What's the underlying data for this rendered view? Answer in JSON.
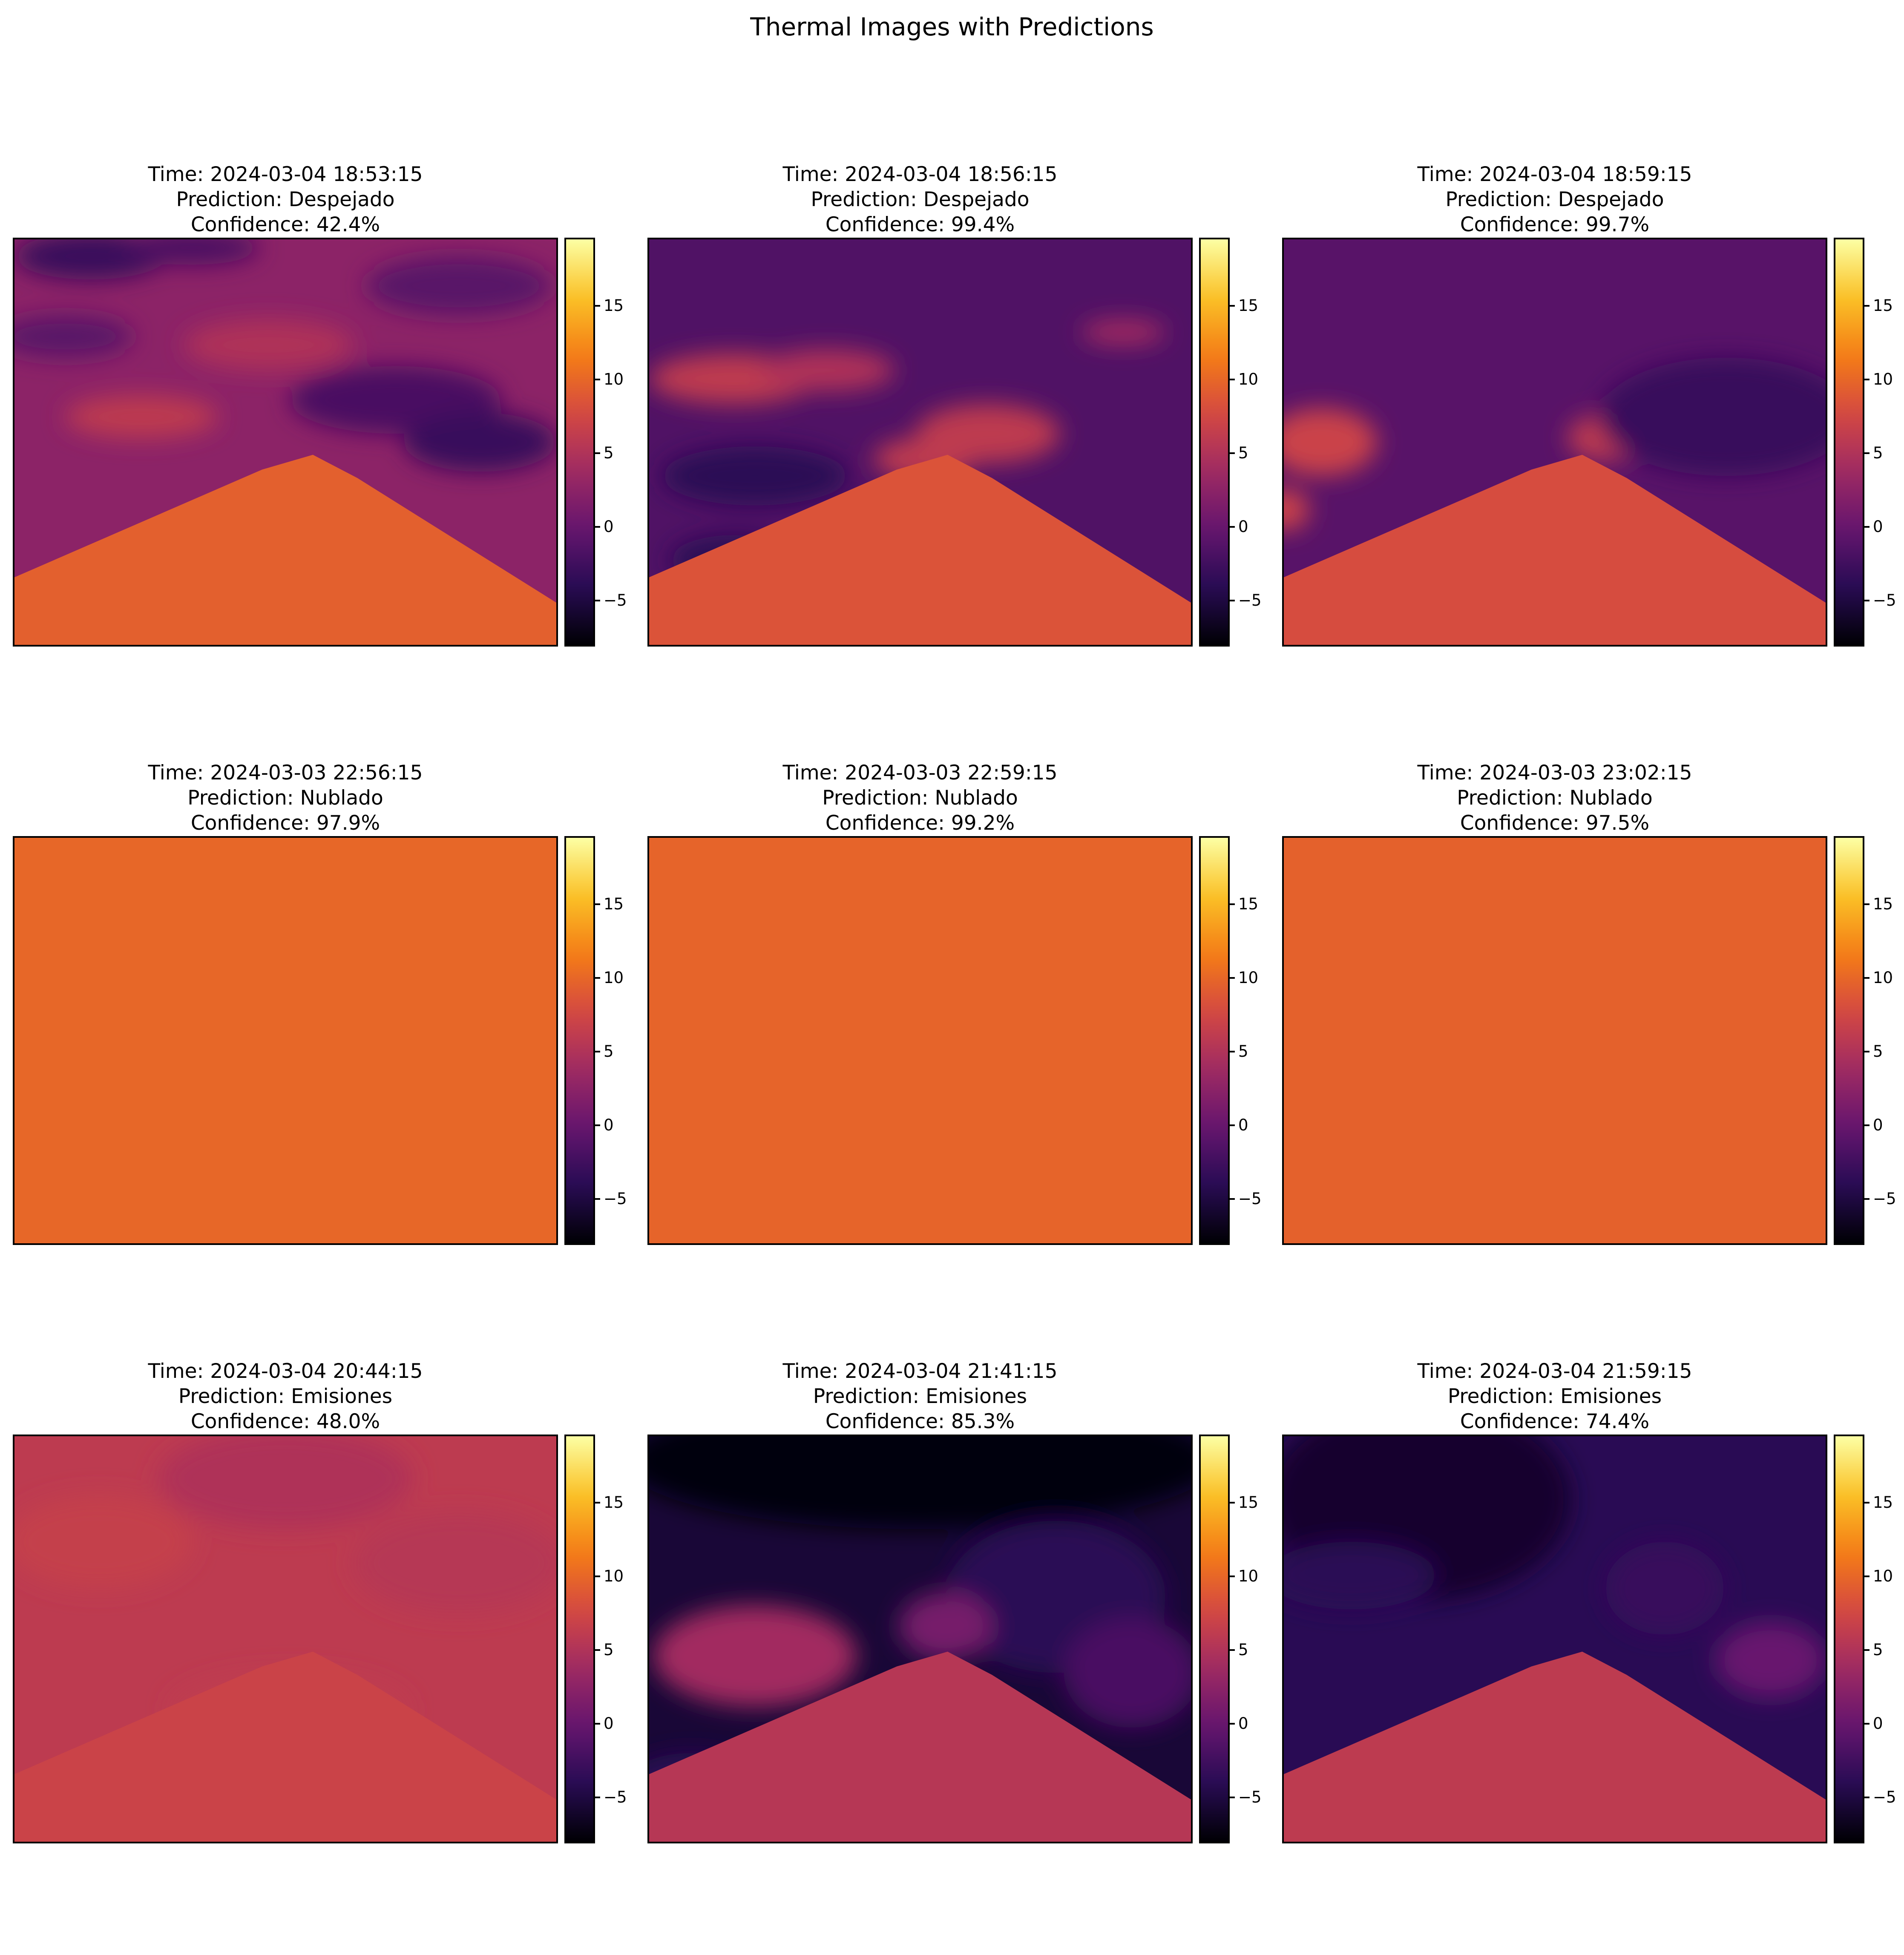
{
  "figure": {
    "title": "Thermal Images with Predictions"
  },
  "colorbar": {
    "colormap": "inferno",
    "vmin": -8,
    "vmax": 19.5,
    "ticks": [
      15,
      10,
      5,
      0,
      -5
    ],
    "tick_labels": [
      "15",
      "10",
      "5",
      "0",
      "−5"
    ]
  },
  "chart_data": [
    {
      "type": "heatmap",
      "time_label": "Time: 2024-03-04 18:53:15",
      "prediction_label": "Prediction: Despejado",
      "confidence_label": "Confidence: 42.4%",
      "scene": "scattered-clouds",
      "sky_value": 2.5,
      "mountain_value": 9.5
    },
    {
      "type": "heatmap",
      "time_label": "Time: 2024-03-04 18:56:15",
      "prediction_label": "Prediction: Despejado",
      "confidence_label": "Confidence: 99.4%",
      "scene": "clear-with-clouds",
      "sky_value": -1.5,
      "mountain_value": 8.5
    },
    {
      "type": "heatmap",
      "time_label": "Time: 2024-03-04 18:59:15",
      "prediction_label": "Prediction: Despejado",
      "confidence_label": "Confidence: 99.7%",
      "scene": "clear-plume",
      "sky_value": -1.0,
      "mountain_value": 8.0
    },
    {
      "type": "heatmap",
      "time_label": "Time: 2024-03-03 22:56:15",
      "prediction_label": "Prediction: Nublado",
      "confidence_label": "Confidence: 97.9%",
      "scene": "uniform",
      "sky_value": 10.0,
      "mountain_value": 10.0
    },
    {
      "type": "heatmap",
      "time_label": "Time: 2024-03-03 22:59:15",
      "prediction_label": "Prediction: Nublado",
      "confidence_label": "Confidence: 99.2%",
      "scene": "uniform",
      "sky_value": 9.8,
      "mountain_value": 9.8
    },
    {
      "type": "heatmap",
      "time_label": "Time: 2024-03-03 23:02:15",
      "prediction_label": "Prediction: Nublado",
      "confidence_label": "Confidence: 97.5%",
      "scene": "uniform",
      "sky_value": 9.6,
      "mountain_value": 9.6
    },
    {
      "type": "heatmap",
      "time_label": "Time: 2024-03-04 20:44:15",
      "prediction_label": "Prediction: Emisiones",
      "confidence_label": "Confidence: 48.0%",
      "scene": "haze",
      "sky_value": 6.0,
      "mountain_value": 7.0
    },
    {
      "type": "heatmap",
      "time_label": "Time: 2024-03-04 21:41:15",
      "prediction_label": "Prediction: Emisiones",
      "confidence_label": "Confidence: 85.3%",
      "scene": "dark-sky-plume",
      "sky_value": -5.5,
      "mountain_value": 5.5
    },
    {
      "type": "heatmap",
      "time_label": "Time: 2024-03-04 21:59:15",
      "prediction_label": "Prediction: Emisiones",
      "confidence_label": "Confidence: 74.4%",
      "scene": "dark-patch",
      "sky_value": -4.0,
      "mountain_value": 6.0
    }
  ]
}
